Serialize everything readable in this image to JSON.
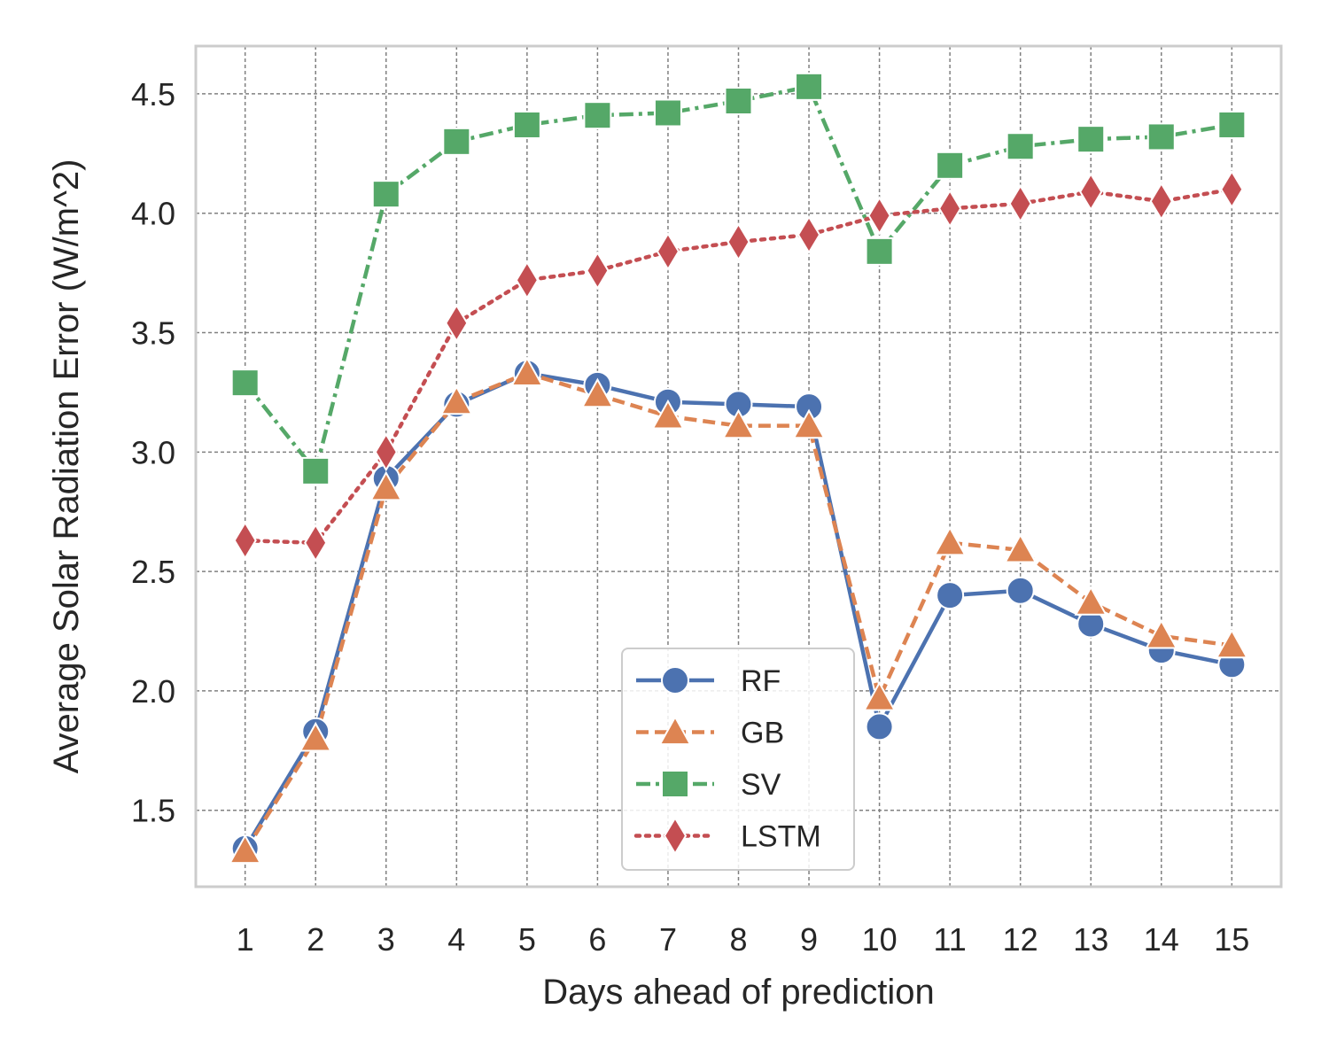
{
  "chart_data": {
    "type": "line",
    "title": "",
    "xlabel": "Days ahead of prediction",
    "ylabel": "Average Solar Radiation Error (W/m^2)",
    "x": [
      1,
      2,
      3,
      4,
      5,
      6,
      7,
      8,
      9,
      10,
      11,
      12,
      13,
      14,
      15
    ],
    "xlim": [
      0.3,
      15.7
    ],
    "ylim": [
      1.18,
      4.7
    ],
    "yticks": [
      1.5,
      2.0,
      2.5,
      3.0,
      3.5,
      4.0,
      4.5
    ],
    "ytick_labels": [
      "1.5",
      "2.0",
      "2.5",
      "3.0",
      "3.5",
      "4.0",
      "4.5"
    ],
    "grid": true,
    "legend_position": "lower-center",
    "series": [
      {
        "name": "RF",
        "color": "#4C72B0",
        "marker": "circle",
        "dash": "solid",
        "values": [
          1.34,
          1.83,
          2.89,
          3.2,
          3.33,
          3.28,
          3.21,
          3.2,
          3.19,
          1.85,
          2.4,
          2.42,
          2.28,
          2.17,
          2.11
        ]
      },
      {
        "name": "GB",
        "color": "#DD8452",
        "marker": "triangle",
        "dash": "dashed",
        "values": [
          1.33,
          1.8,
          2.85,
          3.21,
          3.33,
          3.24,
          3.15,
          3.11,
          3.11,
          1.97,
          2.62,
          2.59,
          2.37,
          2.23,
          2.19
        ]
      },
      {
        "name": "SV",
        "color": "#55A868",
        "marker": "square",
        "dash": "dashdot",
        "values": [
          3.29,
          2.92,
          4.08,
          4.3,
          4.37,
          4.41,
          4.42,
          4.47,
          4.53,
          3.84,
          4.2,
          4.28,
          4.31,
          4.32,
          4.37
        ]
      },
      {
        "name": "LSTM",
        "color": "#C44E52",
        "marker": "diamond",
        "dash": "dotted",
        "values": [
          2.63,
          2.62,
          3.0,
          3.54,
          3.72,
          3.76,
          3.84,
          3.88,
          3.91,
          3.99,
          4.02,
          4.04,
          4.09,
          4.05,
          4.1
        ]
      }
    ]
  }
}
